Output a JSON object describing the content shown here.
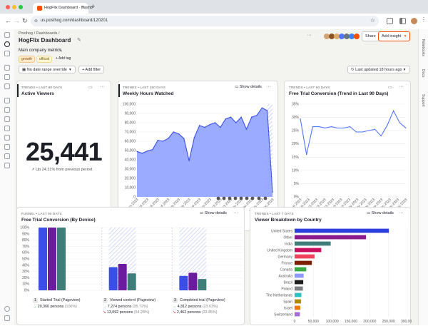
{
  "browser": {
    "tab_title": "HogFlix Dashboard · Dashb",
    "url": "us.posthog.com/dashboard/120201"
  },
  "header": {
    "breadcrumb": "Posthog / Dashboards /",
    "title": "HogFlix Dashboard",
    "share_label": "Share",
    "add_insight_label": "Add insight",
    "description": "Main company metrics",
    "tags": [
      "growth",
      "official"
    ],
    "add_tag_label": "+ Add tag",
    "date_filter": "No date range override",
    "add_filter_label": "+ Add filter",
    "last_updated": "Last updated 18 hours ago"
  },
  "right_nav": [
    "Notebooks",
    "Docs",
    "Support"
  ],
  "colors": {
    "accent": "#f54e00",
    "primary": "#5375ff",
    "area_fill": "#8a9cff"
  },
  "cards": {
    "active_viewers": {
      "tag": "TRENDS • LAST 90 DAYS",
      "title": "Active Viewers",
      "value": "25,441",
      "change": "Up 24.31% from previous period"
    },
    "weekly_hours": {
      "tag": "TRENDS • LAST 180 DAYS",
      "title": "Weekly Hours Watched",
      "show_details": "Show details"
    },
    "free_trial_trend": {
      "tag": "TRENDS • LAST 90 DAYS",
      "title": "Free Trial Conversion (Trend in Last 90 Days)"
    },
    "free_trial_device": {
      "tag": "FUNNEL • LAST 90 DAYS",
      "title": "Free Trial Conversion (By Device)",
      "show_details": "Show details",
      "steps": [
        {
          "num": "1",
          "name": "Started Trial (Pageview)",
          "line1": "20,366 persons",
          "pct1": "(100%)",
          "line2": "",
          "pct2": ""
        },
        {
          "num": "2",
          "name": "Viewed content (Pageview)",
          "line1": "7,274 persons",
          "pct1": "(35.72%)",
          "line2": "13,092 persons",
          "pct2": "(64.28%)"
        },
        {
          "num": "3",
          "name": "Completed trial (Pageview)",
          "line1": "4,812 persons",
          "pct1": "(23.63%)",
          "line2": "2,462 persons",
          "pct2": "(33.85%)"
        }
      ]
    },
    "viewer_country": {
      "tag": "TRENDS • LAST 7 DAYS",
      "title": "Viewer Breakdown by Country",
      "show_details": "Show details"
    }
  },
  "chart_data": [
    {
      "type": "area",
      "title": "Weekly Hours Watched",
      "x": [
        "19-Jun-2023",
        "26-Jun-2023",
        "3-Jul-2023",
        "10-Jul-2023",
        "17-Jul-2023",
        "24-Jul-2023",
        "31-Jul-2023",
        "7-Aug-2023",
        "14-Aug-2023",
        "21-Aug-2023",
        "28-Aug-2023",
        "4-Sep-2023",
        "11-Sep-2023",
        "18-Sep-2023",
        "25-Sep-2023",
        "2-Oct-2023",
        "9-Oct-2023",
        "16-Oct-2023",
        "23-Oct-2023",
        "30-Oct-2023",
        "6-Nov-2023",
        "13-Nov-2023",
        "20-Nov-2023",
        "27-Nov-2023",
        "4-Dec-2023",
        "11-Dec-2023",
        "18-Dec-2023"
      ],
      "x_ticks": [
        "19-Jun-2023",
        "3-Jul-2023",
        "17-Jul-2023",
        "31-Jul-2023",
        "14-Aug-2023",
        "28-Aug-2023",
        "11-Sep-2023",
        "25-Sep-2023",
        "9-Oct-2023",
        "23-Oct-2023",
        "6-Nov-2023",
        "20-Nov-2023",
        "4-Dec-2023",
        "18-Dec-2023"
      ],
      "values": [
        49000,
        47000,
        49500,
        51000,
        61000,
        60000,
        63000,
        70000,
        68000,
        63000,
        39000,
        64000,
        77000,
        75000,
        78000,
        80000,
        75000,
        84000,
        86000,
        80000,
        86000,
        73000,
        86000,
        88000,
        96000,
        93000,
        5000
      ],
      "ylim": [
        0,
        100000
      ],
      "y_ticks": [
        "100,000",
        "90,000",
        "80,000",
        "70,000",
        "60,000",
        "50,000",
        "40,000",
        "30,000",
        "20,000",
        "10,000",
        "0"
      ]
    },
    {
      "type": "line",
      "title": "Free Trial Conversion (Trend in Last 90 Days)",
      "x_ticks": [
        "18-Sep-2023",
        "25-Sep-2023",
        "2-Oct-2023",
        "9-Oct-2023",
        "16-Oct-2023",
        "23-Oct-2023",
        "30-Oct-2023",
        "6-Nov-2023",
        "13-Nov-2023",
        "20-Nov-2023",
        "27-Nov-2023",
        "4-Dec-2023",
        "11-Dec-2023",
        "18-Dec-2023"
      ],
      "values": [
        29.5,
        16,
        26.5,
        26.5,
        26,
        26.5,
        26,
        26,
        26.5,
        24.5,
        24.5,
        25,
        25.5,
        23,
        27,
        32.5,
        28,
        26
      ],
      "ylim": [
        0,
        35
      ],
      "y_ticks": [
        "35%",
        "30%",
        "25%",
        "20%",
        "15%",
        "10%",
        "5%",
        "0%"
      ]
    },
    {
      "type": "bar",
      "title": "Free Trial Conversion (By Device)",
      "categories": [
        "Started Trial (Pageview)",
        "Viewed content (Pageview)",
        "Completed trial (Pageview)"
      ],
      "series": [
        {
          "color": "#3b4fe8",
          "values": [
            100,
            37,
            23
          ]
        },
        {
          "color": "#6b1b9e",
          "values": [
            100,
            42,
            28
          ]
        },
        {
          "color": "#3f7d79",
          "values": [
            100,
            27,
            18
          ]
        }
      ],
      "ylim": [
        0,
        100
      ],
      "y_ticks": [
        "100%",
        "90%",
        "80%",
        "70%",
        "60%",
        "50%",
        "40%",
        "30%",
        "20%",
        "10%",
        "0%"
      ]
    },
    {
      "type": "bar",
      "orientation": "horizontal",
      "title": "Viewer Breakdown by Country",
      "categories": [
        "United States",
        "Other",
        "India",
        "United Kingdom",
        "Germany",
        "France",
        "Canada",
        "Australia",
        "Brazil",
        "Poland",
        "The Netherlands",
        "Spain",
        "Israel",
        "Switzerland"
      ],
      "values": [
        251000,
        190000,
        96000,
        71000,
        53000,
        46000,
        31000,
        24000,
        23000,
        22000,
        18000,
        17000,
        15000,
        14000
      ],
      "colors": [
        "#2c3ee0",
        "#8a1a8e",
        "#3f7d79",
        "#c90f5f",
        "#f1435d",
        "#7a1f00",
        "#3aa843",
        "#8e9bf8",
        "#1f1f1f",
        "#7c7c83",
        "#2cc2c2",
        "#b08a00",
        "#ec7a08",
        "#a36bdb"
      ],
      "xlim": [
        0,
        300000
      ],
      "x_ticks": [
        "0",
        "50,000",
        "100,000",
        "150,000",
        "200,000",
        "250,000",
        "300,000"
      ]
    }
  ]
}
